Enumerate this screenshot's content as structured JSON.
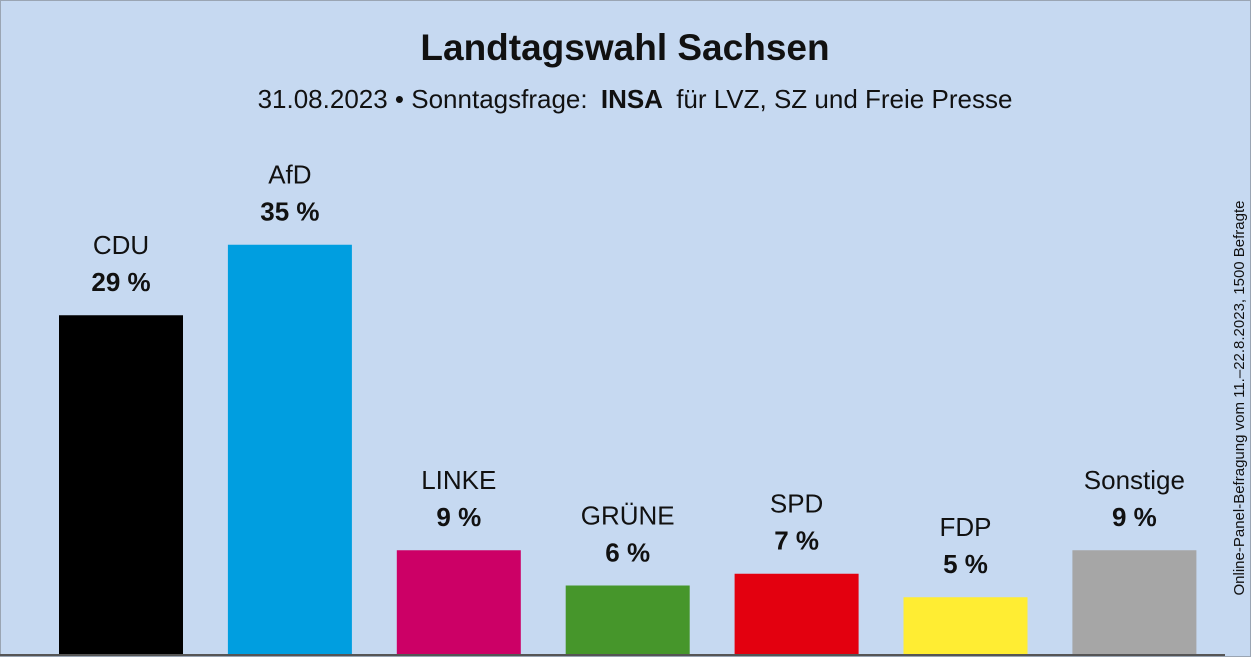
{
  "chart_data": {
    "type": "bar",
    "title": "Landtagswahl Sachsen",
    "subtitle": {
      "date_and_question": "31.08.2023 • Sonntagsfrage:",
      "pollster": "INSA",
      "client": "für LVZ, SZ und Freie Presse"
    },
    "note": "Online-Panel-Befragung vom 11.–22.8.2023, 1500 Befragte",
    "categories": [
      "CDU",
      "AfD",
      "LINKE",
      "GRÜNE",
      "SPD",
      "FDP",
      "Sonstige"
    ],
    "values": [
      29,
      35,
      9,
      6,
      7,
      5,
      9
    ],
    "value_labels": [
      "29 %",
      "35 %",
      "9 %",
      "6 %",
      "7 %",
      "5 %",
      "9 %"
    ],
    "colors": [
      "#000000",
      "#009ee0",
      "#cc0066",
      "#46962b",
      "#e3000f",
      "#ffed33",
      "#a6a6a6"
    ]
  }
}
